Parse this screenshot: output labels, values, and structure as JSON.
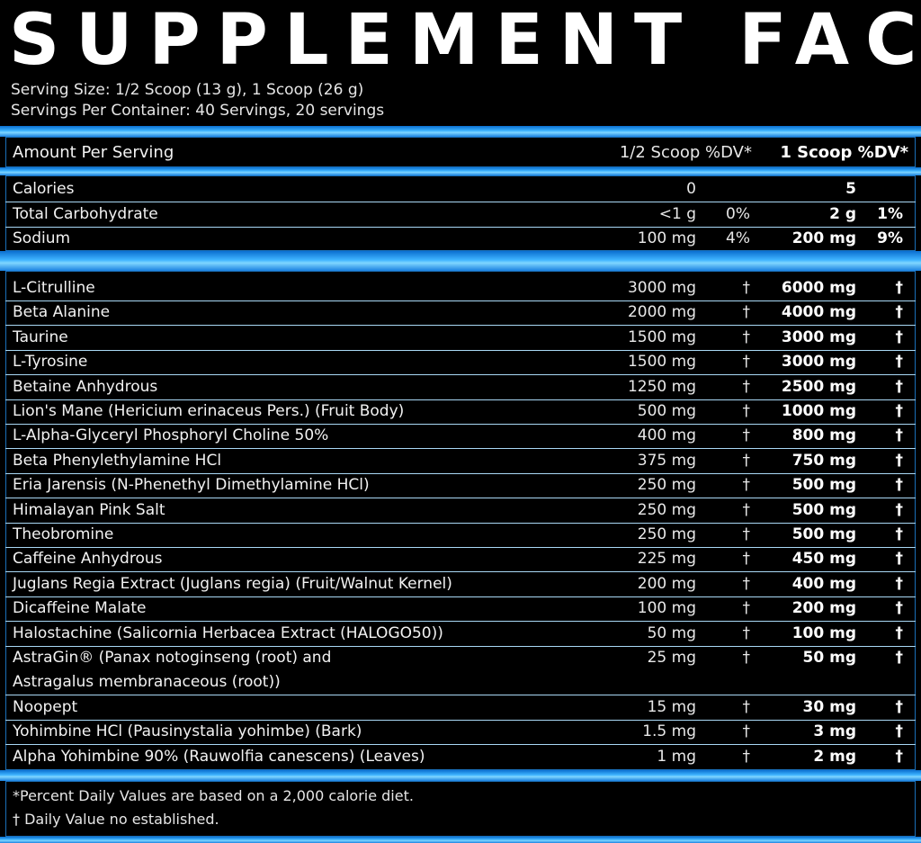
{
  "title": "SUPPLEMENT FACTS",
  "serving_size": "Serving Size: 1/2 Scoop (13 g), 1 Scoop (26 g)",
  "servings_per_container": "Servings Per Container: 40 Servings, 20 servings",
  "header": {
    "amount_label": "Amount Per Serving",
    "half_label": "1/2 Scoop %DV*",
    "full_label": "1 Scoop %DV*"
  },
  "nutrients": [
    {
      "name": "Calories",
      "half": "0",
      "half_dv": "",
      "full": "5",
      "full_dv": ""
    },
    {
      "name": "Total Carbohydrate",
      "half": "<1 g",
      "half_dv": "0%",
      "full": "2 g",
      "full_dv": "1%"
    },
    {
      "name": "Sodium",
      "half": "100 mg",
      "half_dv": "4%",
      "full": "200 mg",
      "full_dv": "9%"
    }
  ],
  "ingredients": [
    {
      "name": "L-Citrulline",
      "half": "3000 mg",
      "half_dv": "†",
      "full": "6000 mg",
      "full_dv": "†"
    },
    {
      "name": "Beta Alanine",
      "half": "2000 mg",
      "half_dv": "†",
      "full": "4000 mg",
      "full_dv": "†"
    },
    {
      "name": "Taurine",
      "half": "1500 mg",
      "half_dv": "†",
      "full": "3000 mg",
      "full_dv": "†"
    },
    {
      "name": "L-Tyrosine",
      "half": "1500 mg",
      "half_dv": "†",
      "full": "3000 mg",
      "full_dv": "†"
    },
    {
      "name": "Betaine Anhydrous",
      "half": "1250 mg",
      "half_dv": "†",
      "full": "2500 mg",
      "full_dv": "†"
    },
    {
      "name": "Lion's Mane (Hericium erinaceus Pers.) (Fruit Body)",
      "half": "500 mg",
      "half_dv": "†",
      "full": "1000 mg",
      "full_dv": "†"
    },
    {
      "name": "L-Alpha-Glyceryl Phosphoryl Choline 50%",
      "half": "400 mg",
      "half_dv": "†",
      "full": "800 mg",
      "full_dv": "†"
    },
    {
      "name": "Beta Phenylethylamine HCl",
      "half": "375 mg",
      "half_dv": "†",
      "full": "750 mg",
      "full_dv": "†"
    },
    {
      "name": "Eria Jarensis (N-Phenethyl Dimethylamine HCl)",
      "half": "250 mg",
      "half_dv": "†",
      "full": "500 mg",
      "full_dv": "†"
    },
    {
      "name": "Himalayan Pink Salt",
      "half": "250 mg",
      "half_dv": "†",
      "full": "500 mg",
      "full_dv": "†"
    },
    {
      "name": "Theobromine",
      "half": "250 mg",
      "half_dv": "†",
      "full": "500 mg",
      "full_dv": "†"
    },
    {
      "name": "Caffeine Anhydrous",
      "half": "225 mg",
      "half_dv": "†",
      "full": "450 mg",
      "full_dv": "†"
    },
    {
      "name": "Juglans Regia Extract (Juglans regia) (Fruit/Walnut Kernel)",
      "half": "200 mg",
      "half_dv": "†",
      "full": "400 mg",
      "full_dv": "†"
    },
    {
      "name": "Dicaffeine Malate",
      "half": "100 mg",
      "half_dv": "†",
      "full": "200 mg",
      "full_dv": "†"
    },
    {
      "name": "Halostachine (Salicornia Herbacea Extract (HALOGO50))",
      "half": "50 mg",
      "half_dv": "†",
      "full": "100 mg",
      "full_dv": "†"
    },
    {
      "name": "AstraGin® (Panax notoginseng (root) and",
      "name_line2": "Astragalus membranaceous (root))",
      "half": "25 mg",
      "half_dv": "†",
      "full": "50 mg",
      "full_dv": "†"
    },
    {
      "name": "Noopept",
      "half": "15 mg",
      "half_dv": "†",
      "full": "30 mg",
      "full_dv": "†"
    },
    {
      "name": "Yohimbine HCl (Pausinystalia yohimbe) (Bark)",
      "half": "1.5 mg",
      "half_dv": "†",
      "full": "3 mg",
      "full_dv": "†"
    },
    {
      "name": "Alpha Yohimbine 90% (Rauwolfia canescens) (Leaves)",
      "half": "1 mg",
      "half_dv": "†",
      "full": "2 mg",
      "full_dv": "†"
    }
  ],
  "footnotes": {
    "dv_note": "*Percent Daily Values are based on a 2,000 calorie diet.",
    "dagger_note": "† Daily Value no established."
  },
  "colors": {
    "background": "#000000",
    "accent_blue": "#3fb4ff",
    "text": "#f2f2f2"
  }
}
